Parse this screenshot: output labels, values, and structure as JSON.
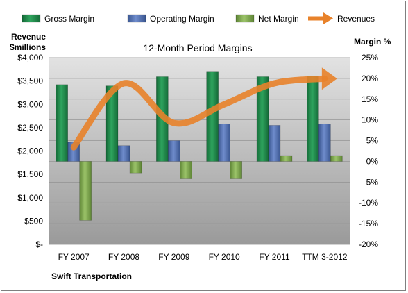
{
  "chart_data": {
    "type": "bar",
    "title": "12-Month Period Margins",
    "company_label": "Swift Transportation",
    "left_axis_label_line1": "Revenue",
    "left_axis_label_line2": "$millions",
    "right_axis_label": "Margin %",
    "categories": [
      "FY 2007",
      "FY 2008",
      "FY 2009",
      "FY 2010",
      "FY 2011",
      "TTM 3-2012"
    ],
    "left_ticks": [
      "$-",
      "$500",
      "$1,000",
      "$1,500",
      "$2,000",
      "$2,500",
      "$3,000",
      "$3,500",
      "$4,000"
    ],
    "right_ticks": [
      "-20%",
      "-15%",
      "-10%",
      "-5%",
      "0%",
      "5%",
      "10%",
      "15%",
      "20%",
      "25%"
    ],
    "left_range": [
      0,
      4000
    ],
    "right_range": [
      -20,
      25
    ],
    "legend_position": "top",
    "series": [
      {
        "name": "Gross Margin",
        "axis": "right",
        "kind": "bar",
        "color": "#1f8a4c",
        "values": [
          18.5,
          18.2,
          20.4,
          21.7,
          20.4,
          20.5
        ]
      },
      {
        "name": "Operating Margin",
        "axis": "right",
        "kind": "bar",
        "color": "#4f6fb3",
        "values": [
          4.6,
          3.8,
          5.0,
          9.0,
          8.7,
          9.0
        ]
      },
      {
        "name": "Net Margin",
        "axis": "right",
        "kind": "bar",
        "color": "#79a548",
        "values": [
          -14.2,
          -2.8,
          -4.2,
          -4.2,
          1.4,
          1.4
        ]
      },
      {
        "name": "Revenues",
        "axis": "left",
        "kind": "line",
        "color": "#e8822a",
        "values": [
          2080,
          3450,
          2600,
          3000,
          3450,
          3550
        ]
      }
    ]
  }
}
